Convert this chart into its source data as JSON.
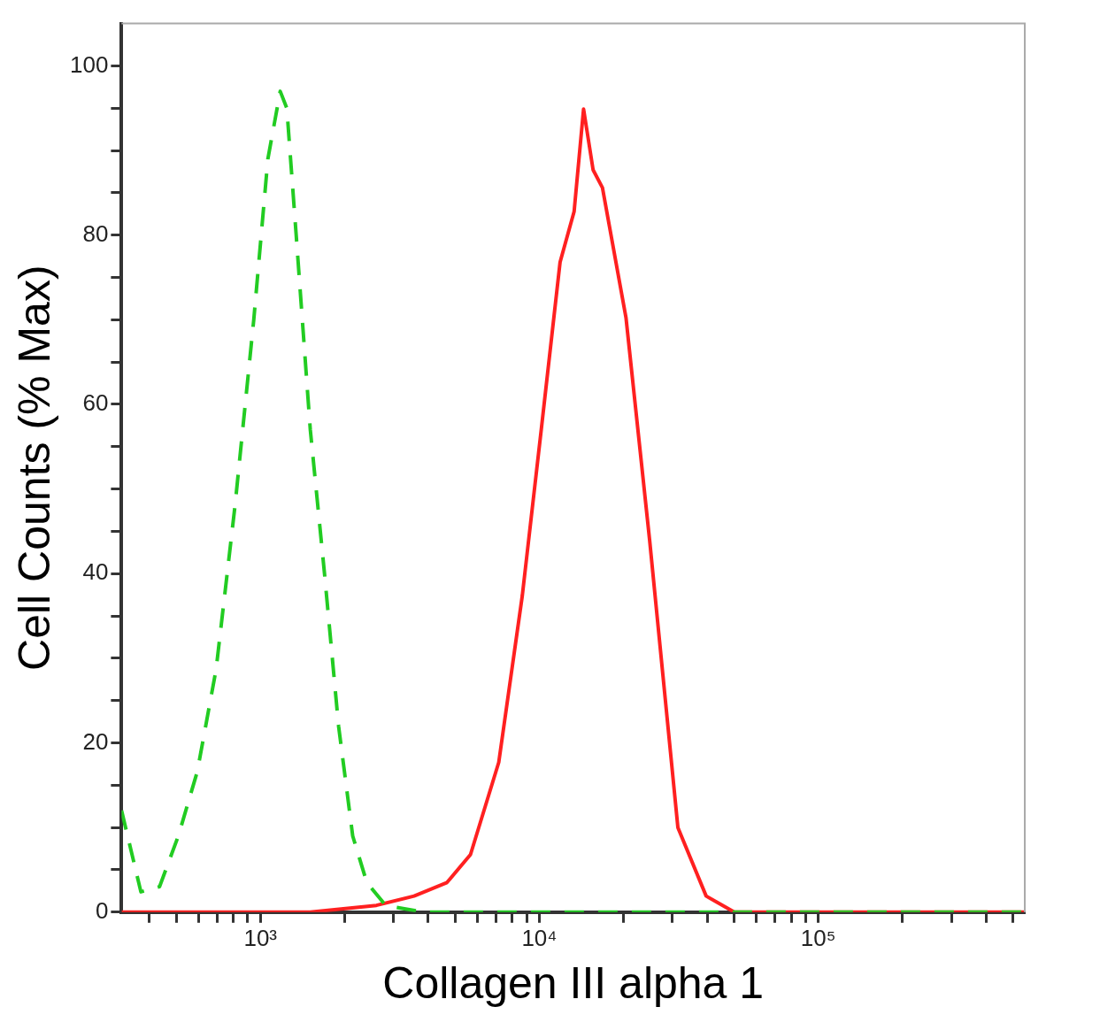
{
  "chart_data": {
    "type": "line",
    "xlabel": "Collagen III alpha 1",
    "ylabel": "Cell Counts (% Max)",
    "log": "x",
    "grid": false,
    "legend": false,
    "marker": "none",
    "xlim": [
      318,
      550000
    ],
    "ylim": [
      0,
      105
    ],
    "xticks": [
      {
        "value": 400,
        "label": null
      },
      {
        "value": 500,
        "label": null
      },
      {
        "value": 600,
        "label": null
      },
      {
        "value": 700,
        "label": null
      },
      {
        "value": 800,
        "label": null
      },
      {
        "value": 900,
        "label": null
      },
      {
        "value": 1000,
        "label": "10³"
      },
      {
        "value": 2000,
        "label": null
      },
      {
        "value": 3000,
        "label": null
      },
      {
        "value": 4000,
        "label": null
      },
      {
        "value": 5000,
        "label": null
      },
      {
        "value": 6000,
        "label": null
      },
      {
        "value": 7000,
        "label": null
      },
      {
        "value": 8000,
        "label": null
      },
      {
        "value": 9000,
        "label": null
      },
      {
        "value": 10000,
        "label": "10⁴"
      },
      {
        "value": 20000,
        "label": null
      },
      {
        "value": 30000,
        "label": null
      },
      {
        "value": 40000,
        "label": null
      },
      {
        "value": 50000,
        "label": null
      },
      {
        "value": 60000,
        "label": null
      },
      {
        "value": 70000,
        "label": null
      },
      {
        "value": 80000,
        "label": null
      },
      {
        "value": 90000,
        "label": null
      },
      {
        "value": 100000,
        "label": "10⁵"
      },
      {
        "value": 200000,
        "label": null
      },
      {
        "value": 300000,
        "label": null
      },
      {
        "value": 400000,
        "label": null
      },
      {
        "value": 500000,
        "label": null
      }
    ],
    "yticks": [
      0,
      {
        "value": 5,
        "label": null
      },
      {
        "value": 10,
        "label": null
      },
      {
        "value": 15,
        "label": null
      },
      20,
      {
        "value": 25,
        "label": null
      },
      {
        "value": 30,
        "label": null
      },
      {
        "value": 35,
        "label": null
      },
      40,
      {
        "value": 45,
        "label": null
      },
      {
        "value": 50,
        "label": null
      },
      {
        "value": 55,
        "label": null
      },
      60,
      {
        "value": 65,
        "label": null
      },
      {
        "value": 70,
        "label": null
      },
      {
        "value": 75,
        "label": null
      },
      80,
      {
        "value": 85,
        "label": null
      },
      {
        "value": 90,
        "label": null
      },
      {
        "value": 95,
        "label": null
      },
      100
    ],
    "series": [
      {
        "color": "#22cc22",
        "line_style": "dashed",
        "x": [
          318,
          373,
          435,
          508,
          594,
          694,
          811,
          947,
          1064,
          1178,
          1244,
          1344,
          1510,
          1698,
          1907,
          2143,
          2408,
          2813,
          3838,
          550000
        ],
        "values": [
          12,
          2.4,
          3,
          9,
          16.6,
          28.7,
          48,
          70,
          89,
          97,
          95,
          80,
          57,
          40,
          22,
          9,
          3.5,
          0.8,
          0,
          0
        ]
      },
      {
        "color": "#ff2020",
        "line_style": "solid",
        "x": [
          318,
          1510,
          2606,
          3556,
          4667,
          5666,
          7155,
          8690,
          10160,
          11870,
          13330,
          14410,
          15590,
          16840,
          20460,
          24850,
          31390,
          39640,
          50020,
          550000
        ],
        "values": [
          0,
          0,
          0.8,
          1.9,
          3.5,
          6.8,
          17.7,
          37.4,
          57,
          76.8,
          82.8,
          94.9,
          87.7,
          85.6,
          70.2,
          44,
          10,
          1.9,
          0,
          0
        ]
      }
    ]
  }
}
